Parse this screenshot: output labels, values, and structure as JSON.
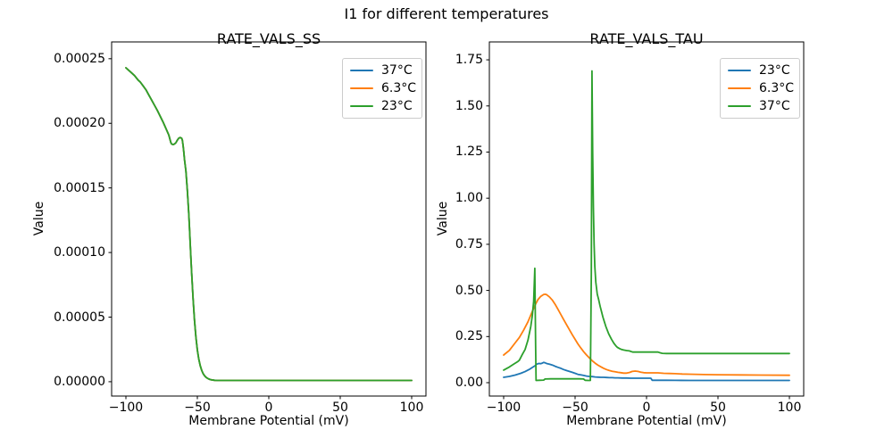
{
  "figure": {
    "suptitle": "I1 for different temperatures",
    "background": "#ffffff",
    "axes_background": "#ffffff",
    "axis_color": "#000000",
    "text_color": "#000000",
    "legend_border_color": "#cccccc"
  },
  "chart_data": [
    {
      "type": "line",
      "title": "RATE_VALS_SS",
      "xlabel": "Membrane Potential (mV)",
      "ylabel": "Value",
      "xlim": [
        -110,
        110
      ],
      "ylim": [
        -1.11e-05,
        0.000263
      ],
      "xticks": [
        -100,
        -50,
        0,
        50,
        100
      ],
      "xtick_labels": [
        "−100",
        "−50",
        "0",
        "50",
        "100"
      ],
      "yticks": [
        0,
        5e-05,
        0.0001,
        0.00015,
        0.0002,
        0.00025
      ],
      "ytick_labels": [
        "0.00000",
        "0.00005",
        "0.00010",
        "0.00015",
        "0.00020",
        "0.00025"
      ],
      "grid": false,
      "legend_position": "upper right",
      "legend": [
        {
          "label": "37°C",
          "color": "#1f77b4"
        },
        {
          "label": "6.3°C",
          "color": "#ff7f0e"
        },
        {
          "label": "23°C",
          "color": "#2ca02c"
        }
      ],
      "note": "All three temperature curves overlap exactly; the green 23°C curve is drawn last and hides the others.",
      "shared_points": [
        [
          -100,
          0.000243
        ],
        [
          -97,
          0.00024
        ],
        [
          -94,
          0.000237
        ],
        [
          -91.5,
          0.0002335
        ],
        [
          -90,
          0.000232
        ],
        [
          -88,
          0.000229
        ],
        [
          -86,
          0.000226
        ],
        [
          -84,
          0.000222
        ],
        [
          -82,
          0.000218
        ],
        [
          -80,
          0.000214
        ],
        [
          -78,
          0.00021
        ],
        [
          -76,
          0.0002055
        ],
        [
          -74,
          0.000201
        ],
        [
          -72,
          0.000196
        ],
        [
          -70,
          0.000191
        ],
        [
          -69,
          0.000187
        ],
        [
          -68.5,
          0.000185
        ],
        [
          -68,
          0.000184
        ],
        [
          -67,
          0.0001835
        ],
        [
          -66,
          0.000184
        ],
        [
          -65,
          0.000185
        ],
        [
          -64,
          0.000187
        ],
        [
          -63,
          0.0001885
        ],
        [
          -62,
          0.000189
        ],
        [
          -61,
          0.0001885
        ],
        [
          -60.5,
          0.000187
        ],
        [
          -60,
          0.000183
        ],
        [
          -59.5,
          0.000178
        ],
        [
          -59,
          0.000172
        ],
        [
          -58,
          0.000163
        ],
        [
          -57,
          0.000148
        ],
        [
          -56,
          0.00013
        ],
        [
          -55.5,
          0.000119
        ],
        [
          -55,
          0.000107
        ],
        [
          -54.5,
          9.55e-05
        ],
        [
          -54,
          8.45e-05
        ],
        [
          -53,
          6.45e-05
        ],
        [
          -52,
          4.75e-05
        ],
        [
          -51,
          3.45e-05
        ],
        [
          -50,
          2.45e-05
        ],
        [
          -49,
          1.75e-05
        ],
        [
          -48,
          1.25e-05
        ],
        [
          -47,
          8.9e-06
        ],
        [
          -46,
          6.4e-06
        ],
        [
          -45,
          4.7e-06
        ],
        [
          -44,
          3.5e-06
        ],
        [
          -43,
          2.7e-06
        ],
        [
          -42,
          2.1e-06
        ],
        [
          -41,
          1.7e-06
        ],
        [
          -40,
          1.4e-06
        ],
        [
          -38,
          1.1e-06
        ],
        [
          -36,
          1e-06
        ],
        [
          -32,
          1e-06
        ],
        [
          -28,
          1e-06
        ],
        [
          -24,
          1e-06
        ],
        [
          -20,
          1e-06
        ],
        [
          -15,
          1e-06
        ],
        [
          -10,
          1e-06
        ],
        [
          0,
          1e-06
        ],
        [
          10,
          1e-06
        ],
        [
          25,
          1e-06
        ],
        [
          40,
          1e-06
        ],
        [
          60,
          1e-06
        ],
        [
          80,
          1e-06
        ],
        [
          100,
          1e-06
        ]
      ],
      "series": [
        {
          "name": "37°C",
          "color": "#1f77b4",
          "points": "shared"
        },
        {
          "name": "6.3°C",
          "color": "#ff7f0e",
          "points": "shared"
        },
        {
          "name": "23°C",
          "color": "#2ca02c",
          "points": "shared"
        }
      ]
    },
    {
      "type": "line",
      "title": "RATE_VALS_TAU",
      "xlabel": "Membrane Potential (mV)",
      "ylabel": "Value",
      "xlim": [
        -110,
        110
      ],
      "ylim": [
        -0.0725,
        1.847
      ],
      "xticks": [
        -100,
        -50,
        0,
        50,
        100
      ],
      "xtick_labels": [
        "−100",
        "−50",
        "0",
        "50",
        "100"
      ],
      "yticks": [
        0,
        0.25,
        0.5,
        0.75,
        1,
        1.25,
        1.5,
        1.75
      ],
      "ytick_labels": [
        "0.00",
        "0.25",
        "0.50",
        "0.75",
        "1.00",
        "1.25",
        "1.50",
        "1.75"
      ],
      "grid": false,
      "legend_position": "upper right",
      "legend": [
        {
          "label": "23°C",
          "color": "#1f77b4"
        },
        {
          "label": "6.3°C",
          "color": "#ff7f0e"
        },
        {
          "label": "37°C",
          "color": "#2ca02c"
        }
      ],
      "note": "Green 37°C curve has narrow spikes peaking at 0.62 near −78 mV and 1.69 near −38 mV.",
      "series": [
        {
          "name": "23°C",
          "color": "#1f77b4",
          "points": [
            [
              -100,
              0.029
            ],
            [
              -96,
              0.034
            ],
            [
              -92,
              0.041
            ],
            [
              -88,
              0.051
            ],
            [
              -85,
              0.06
            ],
            [
              -82,
              0.072
            ],
            [
              -80,
              0.082
            ],
            [
              -78,
              0.092
            ],
            [
              -77,
              0.099
            ],
            [
              -76,
              0.103
            ],
            [
              -75,
              0.104
            ],
            [
              -74,
              0.103
            ],
            [
              -73,
              0.106
            ],
            [
              -72,
              0.11
            ],
            [
              -71,
              0.108
            ],
            [
              -70,
              0.104
            ],
            [
              -68,
              0.1
            ],
            [
              -66,
              0.096
            ],
            [
              -64,
              0.089
            ],
            [
              -62,
              0.083
            ],
            [
              -60,
              0.078
            ],
            [
              -58,
              0.071
            ],
            [
              -56,
              0.066
            ],
            [
              -54,
              0.061
            ],
            [
              -52,
              0.056
            ],
            [
              -50,
              0.051
            ],
            [
              -48,
              0.045
            ],
            [
              -46,
              0.042
            ],
            [
              -44,
              0.039
            ],
            [
              -42,
              0.036
            ],
            [
              -40,
              0.034
            ],
            [
              -38,
              0.033
            ],
            [
              -36,
              0.031
            ],
            [
              -34,
              0.03
            ],
            [
              -32,
              0.029
            ],
            [
              -30,
              0.029
            ],
            [
              -28,
              0.028
            ],
            [
              -26,
              0.027
            ],
            [
              -24,
              0.027
            ],
            [
              -22,
              0.026
            ],
            [
              -20,
              0.026
            ],
            [
              -17,
              0.025
            ],
            [
              -14,
              0.025
            ],
            [
              -11,
              0.024
            ],
            [
              -8,
              0.024
            ],
            [
              -5,
              0.024
            ],
            [
              -2,
              0.024
            ],
            [
              1,
              0.024
            ],
            [
              3,
              0.024
            ],
            [
              4,
              0.013
            ],
            [
              8,
              0.013
            ],
            [
              14,
              0.013
            ],
            [
              20,
              0.0125
            ],
            [
              30,
              0.012
            ],
            [
              45,
              0.012
            ],
            [
              60,
              0.012
            ],
            [
              80,
              0.012
            ],
            [
              100,
              0.012
            ]
          ]
        },
        {
          "name": "6.3°C",
          "color": "#ff7f0e",
          "points": [
            [
              -100,
              0.15
            ],
            [
              -96,
              0.175
            ],
            [
              -92,
              0.215
            ],
            [
              -89,
              0.245
            ],
            [
              -86,
              0.285
            ],
            [
              -83,
              0.33
            ],
            [
              -80,
              0.385
            ],
            [
              -78,
              0.42
            ],
            [
              -76,
              0.45
            ],
            [
              -74,
              0.468
            ],
            [
              -72,
              0.478
            ],
            [
              -71,
              0.479
            ],
            [
              -70,
              0.477
            ],
            [
              -68,
              0.465
            ],
            [
              -66,
              0.448
            ],
            [
              -64,
              0.425
            ],
            [
              -62,
              0.398
            ],
            [
              -60,
              0.37
            ],
            [
              -58,
              0.342
            ],
            [
              -56,
              0.315
            ],
            [
              -54,
              0.287
            ],
            [
              -52,
              0.26
            ],
            [
              -50,
              0.235
            ],
            [
              -48,
              0.21
            ],
            [
              -46,
              0.188
            ],
            [
              -44,
              0.168
            ],
            [
              -42,
              0.15
            ],
            [
              -40,
              0.134
            ],
            [
              -38,
              0.119
            ],
            [
              -36,
              0.106
            ],
            [
              -34,
              0.095
            ],
            [
              -32,
              0.086
            ],
            [
              -30,
              0.078
            ],
            [
              -28,
              0.071
            ],
            [
              -26,
              0.066
            ],
            [
              -24,
              0.062
            ],
            [
              -22,
              0.059
            ],
            [
              -20,
              0.056
            ],
            [
              -18,
              0.054
            ],
            [
              -16,
              0.052
            ],
            [
              -14,
              0.052
            ],
            [
              -12,
              0.055
            ],
            [
              -10,
              0.061
            ],
            [
              -8,
              0.063
            ],
            [
              -6,
              0.061
            ],
            [
              -4,
              0.057
            ],
            [
              -2,
              0.054
            ],
            [
              0,
              0.053
            ],
            [
              4,
              0.053
            ],
            [
              8,
              0.053
            ],
            [
              12,
              0.051
            ],
            [
              16,
              0.05
            ],
            [
              20,
              0.049
            ],
            [
              25,
              0.047
            ],
            [
              30,
              0.046
            ],
            [
              40,
              0.044
            ],
            [
              50,
              0.043
            ],
            [
              65,
              0.042
            ],
            [
              80,
              0.041
            ],
            [
              100,
              0.04
            ]
          ]
        },
        {
          "name": "37°C",
          "color": "#2ca02c",
          "points": [
            [
              -100,
              0.068
            ],
            [
              -96,
              0.085
            ],
            [
              -93,
              0.1
            ],
            [
              -90,
              0.115
            ],
            [
              -89,
              0.122
            ],
            [
              -87,
              0.152
            ],
            [
              -85,
              0.18
            ],
            [
              -83,
              0.23
            ],
            [
              -81,
              0.305
            ],
            [
              -80,
              0.36
            ],
            [
              -79,
              0.44
            ],
            [
              -78.2,
              0.62
            ],
            [
              -77.6,
              0.2
            ],
            [
              -77.3,
              0.012
            ],
            [
              -75,
              0.013
            ],
            [
              -72,
              0.014
            ],
            [
              -71,
              0.02
            ],
            [
              -67,
              0.021
            ],
            [
              -62,
              0.021
            ],
            [
              -57,
              0.021
            ],
            [
              -52,
              0.021
            ],
            [
              -47,
              0.021
            ],
            [
              -44,
              0.02
            ],
            [
              -43,
              0.013
            ],
            [
              -41,
              0.012
            ],
            [
              -39.3,
              0.012
            ],
            [
              -38.6,
              0.6
            ],
            [
              -38.2,
              1.69
            ],
            [
              -37.7,
              1.25
            ],
            [
              -37.2,
              0.95
            ],
            [
              -36.7,
              0.75
            ],
            [
              -36.2,
              0.63
            ],
            [
              -35.5,
              0.545
            ],
            [
              -34.5,
              0.48
            ],
            [
              -33.5,
              0.45
            ],
            [
              -32.5,
              0.415
            ],
            [
              -31.5,
              0.385
            ],
            [
              -30.5,
              0.355
            ],
            [
              -29.5,
              0.33
            ],
            [
              -28.5,
              0.305
            ],
            [
              -27.5,
              0.285
            ],
            [
              -26.5,
              0.265
            ],
            [
              -25.5,
              0.25
            ],
            [
              -24.5,
              0.235
            ],
            [
              -23.5,
              0.222
            ],
            [
              -22.5,
              0.21
            ],
            [
              -21.5,
              0.2
            ],
            [
              -20.5,
              0.192
            ],
            [
              -19,
              0.185
            ],
            [
              -17.5,
              0.18
            ],
            [
              -16,
              0.177
            ],
            [
              -14,
              0.174
            ],
            [
              -12,
              0.172
            ],
            [
              -10.5,
              0.168
            ],
            [
              -9.5,
              0.166
            ],
            [
              -6,
              0.166
            ],
            [
              -2,
              0.166
            ],
            [
              2,
              0.166
            ],
            [
              5,
              0.166
            ],
            [
              8,
              0.166
            ],
            [
              9.5,
              0.162
            ],
            [
              11,
              0.159
            ],
            [
              14,
              0.158
            ],
            [
              18,
              0.158
            ],
            [
              25,
              0.158
            ],
            [
              35,
              0.158
            ],
            [
              50,
              0.158
            ],
            [
              70,
              0.158
            ],
            [
              100,
              0.158
            ]
          ]
        }
      ]
    }
  ]
}
